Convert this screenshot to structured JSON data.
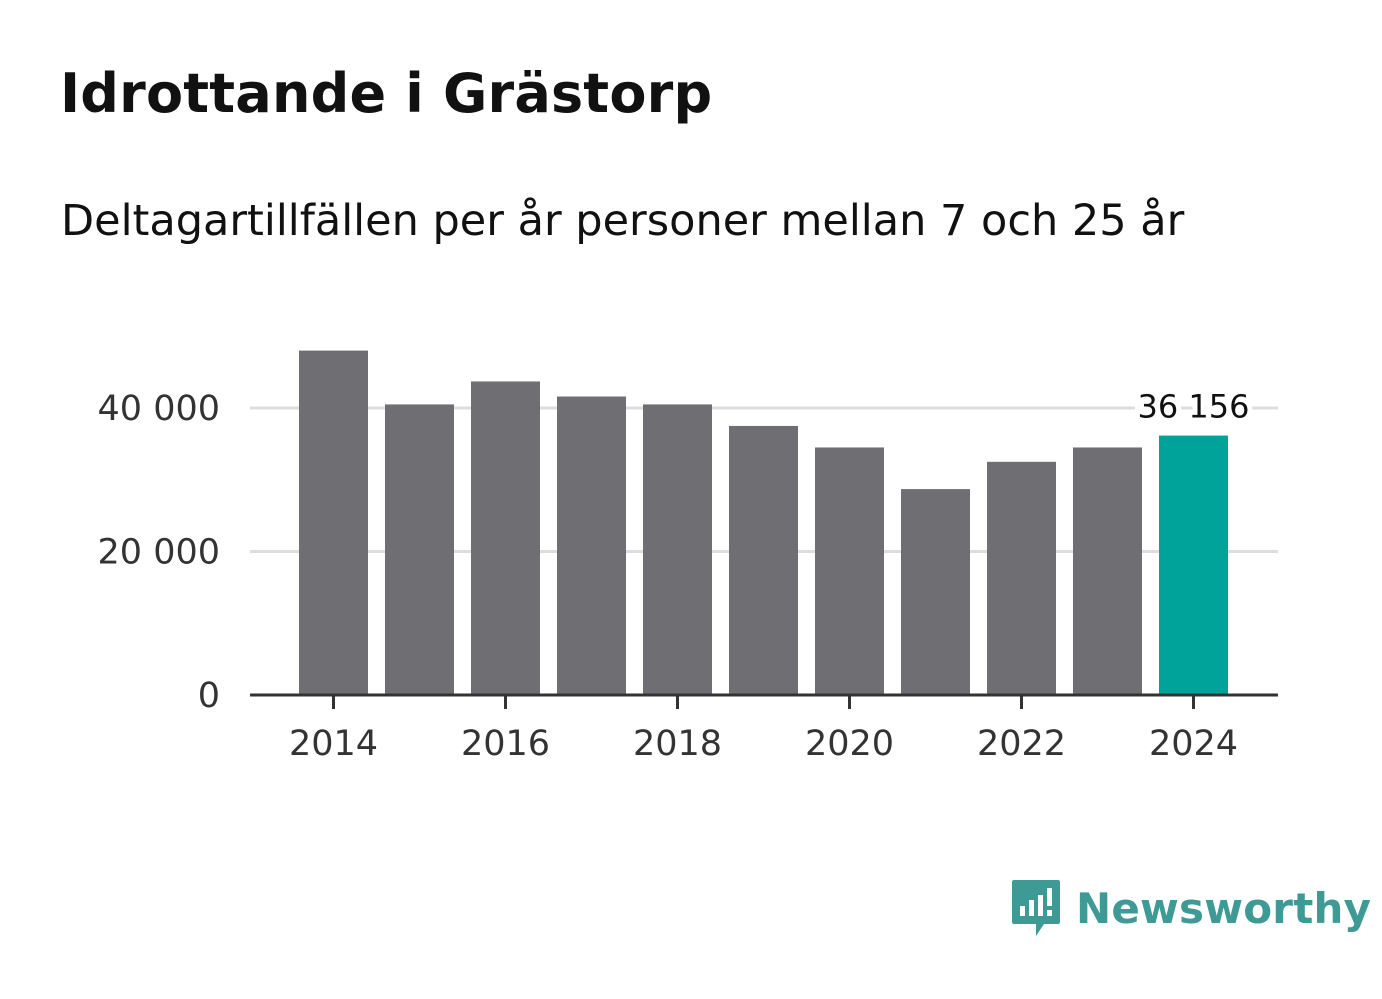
{
  "header": {
    "title": "Idrottande i Grästorp",
    "subtitle": "Deltagartillfällen per år personer mellan 7 och 25 år"
  },
  "colors": {
    "bar": "#6f6e73",
    "highlight": "#00a39a",
    "grid": "#dddddd",
    "axis": "#333333",
    "brand": "#3d9a95"
  },
  "chart_data": {
    "type": "bar",
    "title": "Idrottande i Grästorp",
    "subtitle": "Deltagartillfällen per år personer mellan 7 och 25 år",
    "xlabel": "",
    "ylabel": "",
    "categories": [
      "2014",
      "2015",
      "2016",
      "2017",
      "2018",
      "2019",
      "2020",
      "2021",
      "2022",
      "2023",
      "2024"
    ],
    "values": [
      48000,
      40500,
      43700,
      41600,
      40500,
      37500,
      34500,
      28700,
      32500,
      34500,
      36156
    ],
    "highlight_index": 10,
    "highlight_label": "36 156",
    "ylim": [
      0,
      50000
    ],
    "yticks": [
      0,
      20000,
      40000
    ],
    "ytick_labels": [
      "0",
      "20 000",
      "40 000"
    ],
    "xticks": [
      "2014",
      "2016",
      "2018",
      "2020",
      "2022",
      "2024"
    ],
    "grid": true
  },
  "brand": {
    "name": "Newsworthy",
    "icon": "newsworthy-logo-icon"
  }
}
